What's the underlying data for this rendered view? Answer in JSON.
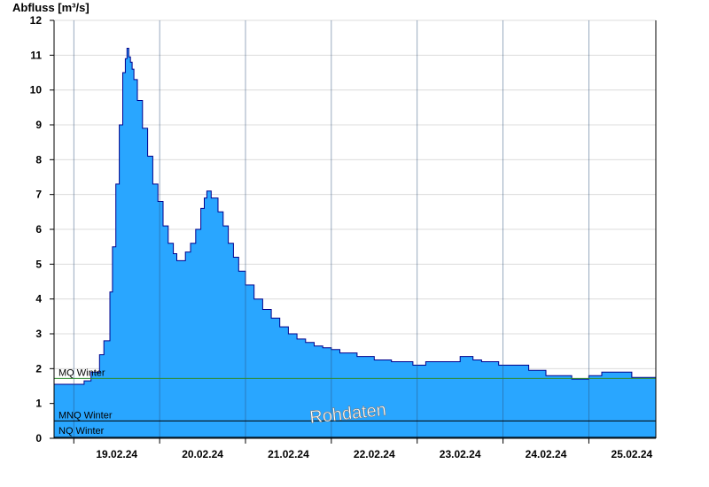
{
  "chart_data": {
    "type": "area",
    "ylabel": "Abfluss [m³/s]",
    "ylim": [
      0,
      12
    ],
    "yticks": [
      "0",
      "1",
      "2",
      "3",
      "4",
      "5",
      "6",
      "7",
      "8",
      "9",
      "10",
      "11",
      "12"
    ],
    "xlim": [
      -0.23,
      6.78
    ],
    "xticks": [
      {
        "pos": 0.5,
        "label": "19.02.24"
      },
      {
        "pos": 1.5,
        "label": "20.02.24"
      },
      {
        "pos": 2.5,
        "label": "21.02.24"
      },
      {
        "pos": 3.5,
        "label": "22.02.24"
      },
      {
        "pos": 4.5,
        "label": "23.02.24"
      },
      {
        "pos": 5.5,
        "label": "24.02.24"
      },
      {
        "pos": 6.5,
        "label": "25.02.24"
      }
    ],
    "grid": true,
    "fill_color": "#29a6ff",
    "line_color": "#00008b",
    "series": [
      {
        "x": [
          -0.23,
          0.04,
          0.12,
          0.2,
          0.3,
          0.35,
          0.42,
          0.45,
          0.49,
          0.53,
          0.57,
          0.6,
          0.62,
          0.64,
          0.66,
          0.68,
          0.7,
          0.74,
          0.8,
          0.86,
          0.92,
          0.98,
          1.04,
          1.1,
          1.16,
          1.2,
          1.24,
          1.3,
          1.36,
          1.42,
          1.48,
          1.52,
          1.55,
          1.6,
          1.68,
          1.74,
          1.8,
          1.86,
          1.92,
          2.0,
          2.1,
          2.2,
          2.3,
          2.4,
          2.5,
          2.6,
          2.7,
          2.8,
          2.9,
          3.0,
          3.1,
          3.3,
          3.5,
          3.7,
          3.95,
          4.0,
          4.1,
          4.3,
          4.5,
          4.65,
          4.75,
          4.95,
          5.3,
          5.5,
          5.8,
          6.0,
          6.15,
          6.25,
          6.5,
          6.78
        ],
        "y": [
          1.55,
          1.55,
          1.65,
          1.9,
          2.4,
          2.8,
          4.2,
          5.5,
          7.3,
          9.0,
          10.5,
          10.9,
          11.2,
          10.95,
          10.8,
          10.6,
          10.3,
          9.7,
          8.9,
          8.1,
          7.3,
          6.8,
          6.1,
          5.6,
          5.3,
          5.1,
          5.1,
          5.35,
          5.6,
          6.0,
          6.6,
          6.9,
          7.1,
          6.9,
          6.5,
          6.1,
          5.6,
          5.2,
          4.8,
          4.4,
          4.0,
          3.7,
          3.45,
          3.2,
          3.0,
          2.85,
          2.75,
          2.65,
          2.6,
          2.55,
          2.45,
          2.35,
          2.25,
          2.2,
          2.1,
          2.1,
          2.2,
          2.2,
          2.35,
          2.25,
          2.2,
          2.1,
          1.95,
          1.8,
          1.7,
          1.8,
          1.9,
          1.9,
          1.75,
          1.7
        ]
      }
    ],
    "reference_lines": [
      {
        "label": "MQ Winter",
        "value": 1.72,
        "color": "#2e8b2e"
      },
      {
        "label": "MNQ Winter",
        "value": 0.5,
        "color": "#000000"
      },
      {
        "label": "NQ Winter",
        "value": 0.03,
        "color": "#000000"
      }
    ],
    "watermark": "Rohdaten"
  }
}
